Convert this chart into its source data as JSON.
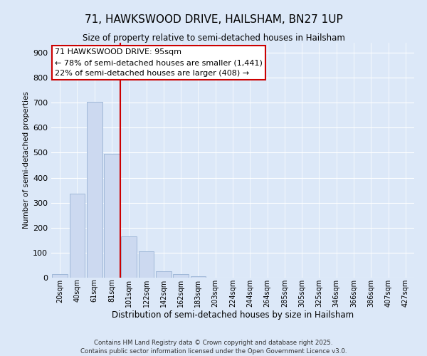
{
  "title": "71, HAWKSWOOD DRIVE, HAILSHAM, BN27 1UP",
  "subtitle": "Size of property relative to semi-detached houses in Hailsham",
  "xlabel": "Distribution of semi-detached houses by size in Hailsham",
  "ylabel": "Number of semi-detached properties",
  "bar_labels": [
    "20sqm",
    "40sqm",
    "61sqm",
    "81sqm",
    "101sqm",
    "122sqm",
    "142sqm",
    "162sqm",
    "183sqm",
    "203sqm",
    "224sqm",
    "244sqm",
    "264sqm",
    "285sqm",
    "305sqm",
    "325sqm",
    "346sqm",
    "366sqm",
    "386sqm",
    "407sqm",
    "427sqm"
  ],
  "bar_values": [
    13,
    335,
    705,
    495,
    165,
    105,
    25,
    15,
    5,
    0,
    0,
    0,
    0,
    0,
    0,
    0,
    0,
    0,
    0,
    0,
    0
  ],
  "bar_color": "#ccd9f0",
  "bar_edge_color": "#a0b8d8",
  "vline_color": "#cc0000",
  "annotation_title": "71 HAWKSWOOD DRIVE: 95sqm",
  "annotation_line1": "← 78% of semi-detached houses are smaller (1,441)",
  "annotation_line2": "22% of semi-detached houses are larger (408) →",
  "annotation_box_color": "#ffffff",
  "annotation_box_edge": "#cc0000",
  "ylim": [
    0,
    940
  ],
  "yticks": [
    0,
    100,
    200,
    300,
    400,
    500,
    600,
    700,
    800,
    900
  ],
  "footer_line1": "Contains HM Land Registry data © Crown copyright and database right 2025.",
  "footer_line2": "Contains public sector information licensed under the Open Government Licence v3.0.",
  "bg_color": "#dce8f8"
}
